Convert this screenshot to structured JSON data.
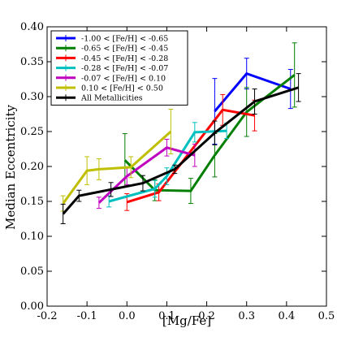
{
  "chart_data": {
    "type": "line",
    "xlabel": "[Mg/Fe]",
    "ylabel": "Median Eccentricity",
    "xlim": [
      -0.2,
      0.5
    ],
    "ylim": [
      0.0,
      0.4
    ],
    "xticks": [
      "-0.2",
      "-0.1",
      "0.0",
      "0.1",
      "0.2",
      "0.3",
      "0.4",
      "0.5"
    ],
    "yticks": [
      "0.00",
      "0.05",
      "0.10",
      "0.15",
      "0.20",
      "0.25",
      "0.30",
      "0.35",
      "0.40"
    ],
    "legend_position": "top-left",
    "series": [
      {
        "name": "-1.00 < [Fe/H] < -0.65",
        "color": "#0000ff",
        "points": [
          {
            "x": 0.22,
            "y": 0.279,
            "err": 0.047
          },
          {
            "x": 0.3,
            "y": 0.333,
            "err": 0.022
          },
          {
            "x": 0.41,
            "y": 0.311,
            "err": 0.028
          }
        ]
      },
      {
        "name": "-0.65 < [Fe/H] < -0.45",
        "color": "#007f00",
        "points": [
          {
            "x": -0.005,
            "y": 0.209,
            "err": 0.038
          },
          {
            "x": 0.07,
            "y": 0.166,
            "err": 0.015
          },
          {
            "x": 0.16,
            "y": 0.165,
            "err": 0.018
          },
          {
            "x": 0.22,
            "y": 0.216,
            "err": 0.031
          },
          {
            "x": 0.3,
            "y": 0.278,
            "err": 0.035
          },
          {
            "x": 0.42,
            "y": 0.331,
            "err": 0.046
          }
        ]
      },
      {
        "name": "-0.45 < [Fe/H] < -0.28",
        "color": "#ff0000",
        "points": [
          {
            "x": 0.0,
            "y": 0.149,
            "err": 0.012
          },
          {
            "x": 0.08,
            "y": 0.163,
            "err": 0.012
          },
          {
            "x": 0.24,
            "y": 0.281,
            "err": 0.022
          },
          {
            "x": 0.32,
            "y": 0.273,
            "err": 0.022
          }
        ]
      },
      {
        "name": "-0.28 < [Fe/H] < -0.07",
        "color": "#00bfbf",
        "points": [
          {
            "x": -0.045,
            "y": 0.15,
            "err": 0.008
          },
          {
            "x": 0.07,
            "y": 0.168,
            "err": 0.012
          },
          {
            "x": 0.1,
            "y": 0.186,
            "err": 0.012
          },
          {
            "x": 0.17,
            "y": 0.249,
            "err": 0.014
          },
          {
            "x": 0.25,
            "y": 0.251,
            "err": 0.011
          }
        ]
      },
      {
        "name": "-0.07 < [Fe/H] < 0.10",
        "color": "#bf00bf",
        "points": [
          {
            "x": -0.07,
            "y": 0.148,
            "err": 0.008
          },
          {
            "x": 0.0,
            "y": 0.186,
            "err": 0.012
          },
          {
            "x": 0.1,
            "y": 0.227,
            "err": 0.012
          },
          {
            "x": 0.17,
            "y": 0.216,
            "err": 0.016
          }
        ]
      },
      {
        "name": "0.10 < [Fe/H] < 0.50",
        "color": "#bfbf00",
        "points": [
          {
            "x": -0.16,
            "y": 0.147,
            "err": 0.011
          },
          {
            "x": -0.1,
            "y": 0.194,
            "err": 0.02
          },
          {
            "x": -0.07,
            "y": 0.196,
            "err": 0.015
          },
          {
            "x": 0.01,
            "y": 0.199,
            "err": 0.015
          },
          {
            "x": 0.11,
            "y": 0.25,
            "err": 0.032
          }
        ]
      },
      {
        "name": "All Metallicities",
        "color": "#000000",
        "points": [
          {
            "x": -0.16,
            "y": 0.132,
            "err": 0.014
          },
          {
            "x": -0.12,
            "y": 0.158,
            "err": 0.008
          },
          {
            "x": -0.04,
            "y": 0.167,
            "err": 0.01
          },
          {
            "x": 0.04,
            "y": 0.176,
            "err": 0.011
          },
          {
            "x": 0.12,
            "y": 0.196,
            "err": 0.006
          },
          {
            "x": 0.22,
            "y": 0.248,
            "err": 0.017
          },
          {
            "x": 0.32,
            "y": 0.293,
            "err": 0.018
          },
          {
            "x": 0.43,
            "y": 0.313,
            "err": 0.02
          }
        ]
      }
    ]
  }
}
